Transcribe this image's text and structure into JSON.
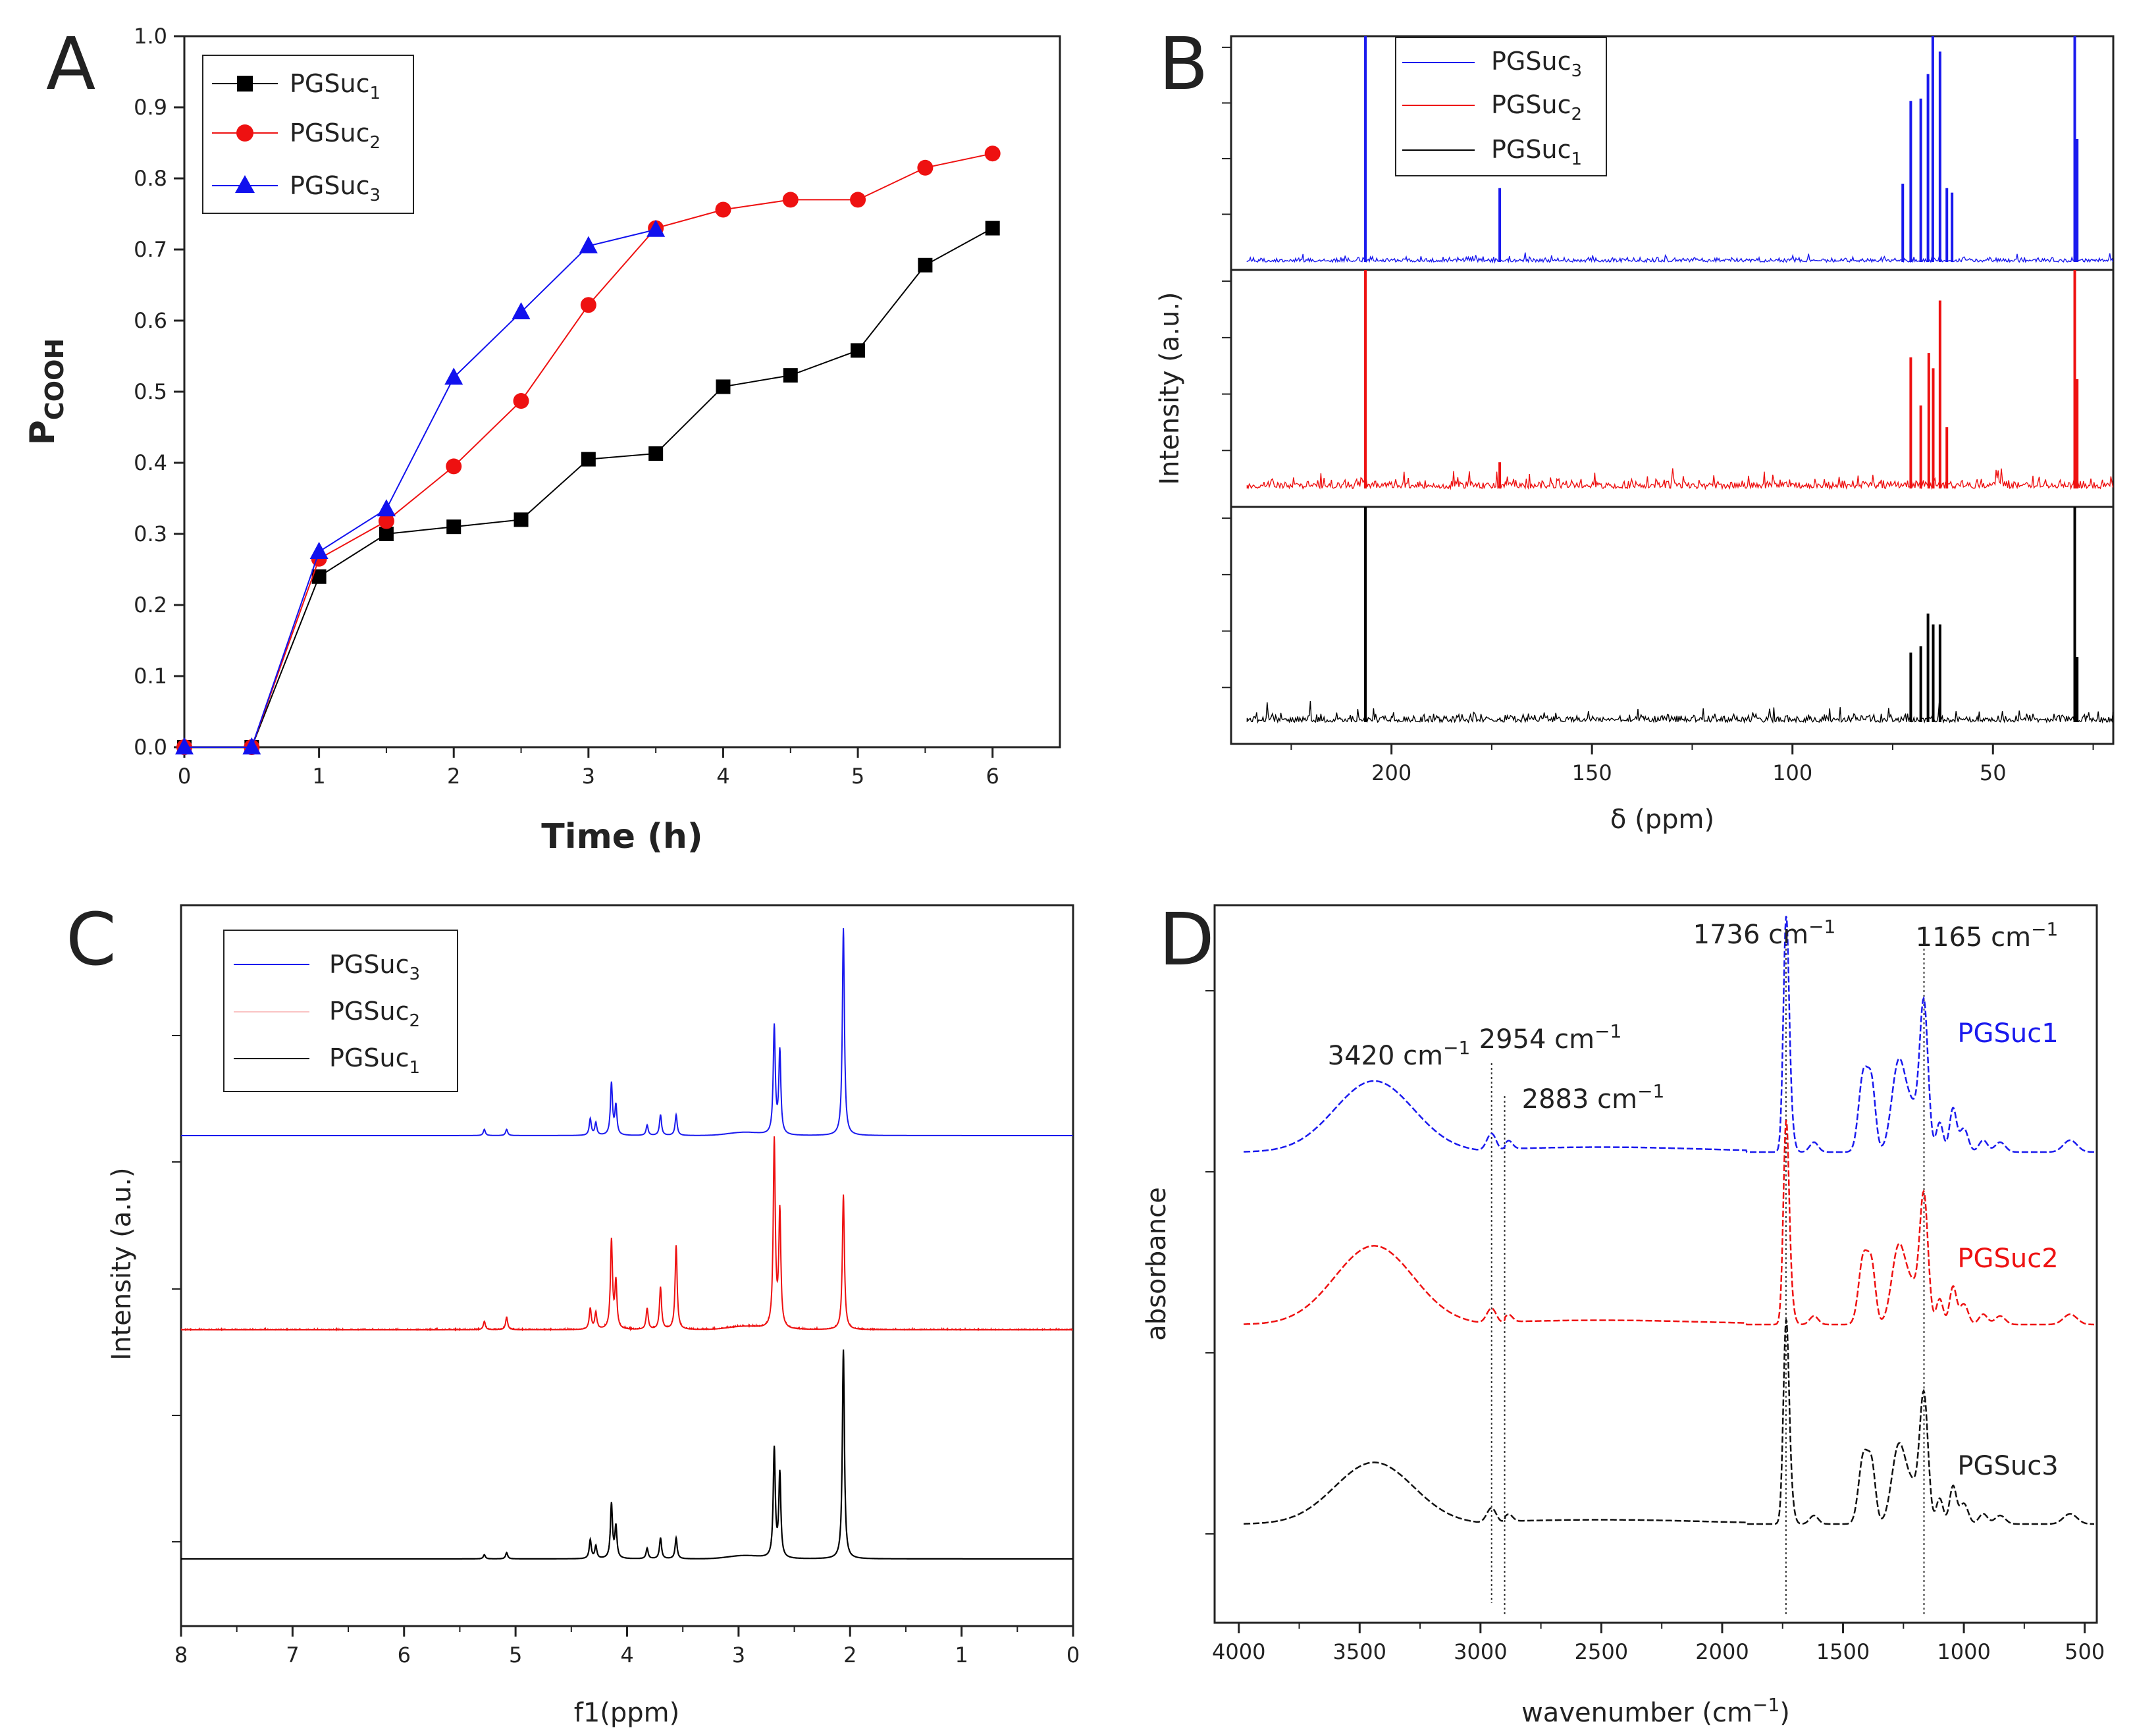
{
  "chart_data": [
    {
      "panel": "A",
      "type": "line",
      "xlabel": "Time (h)",
      "ylabel_main": "P",
      "ylabel_sub": "COOH",
      "xlim": [
        0,
        6.5
      ],
      "ylim": [
        0,
        1.0
      ],
      "xticks": [
        "0",
        "1",
        "2",
        "3",
        "4",
        "5",
        "6"
      ],
      "yticks": [
        "0.0",
        "0.1",
        "0.2",
        "0.3",
        "0.4",
        "0.5",
        "0.6",
        "0.7",
        "0.8",
        "0.9",
        "1.0"
      ],
      "legend_position": "top-left",
      "series": [
        {
          "name": "PGSuc",
          "sub": "1",
          "color": "#000000",
          "marker": "square",
          "x": [
            0,
            0.5,
            1,
            1.5,
            2,
            2.5,
            3,
            3.5,
            4,
            4.5,
            5,
            5.5,
            6
          ],
          "y": [
            0,
            0,
            0.24,
            0.3,
            0.31,
            0.32,
            0.405,
            0.413,
            0.507,
            0.523,
            0.558,
            0.678,
            0.73
          ]
        },
        {
          "name": "PGSuc",
          "sub": "2",
          "color": "#ee1111",
          "marker": "circle",
          "x": [
            0,
            0.5,
            1,
            1.5,
            2,
            2.5,
            3,
            3.5,
            4,
            4.5,
            5,
            5.5,
            6
          ],
          "y": [
            0,
            0,
            0.265,
            0.318,
            0.395,
            0.487,
            0.622,
            0.73,
            0.756,
            0.77,
            0.77,
            0.815,
            0.835
          ]
        },
        {
          "name": "PGSuc",
          "sub": "3",
          "color": "#1111ee",
          "marker": "triangle",
          "x": [
            0,
            0.5,
            1,
            1.5,
            2,
            2.5,
            3,
            3.5
          ],
          "y": [
            0,
            0,
            0.275,
            0.335,
            0.52,
            0.612,
            0.705,
            0.728
          ]
        }
      ]
    },
    {
      "panel": "B",
      "type": "line",
      "xlabel": "δ (ppm)",
      "ylabel": "Intensity (a.u.)",
      "xlim": [
        240,
        20
      ],
      "xticks": [
        "200",
        "150",
        "100",
        "50"
      ],
      "legend_position": "top-center",
      "series": [
        {
          "name": "PGSuc",
          "sub": "3",
          "color": "#1a1aee",
          "peaks": [
            [
              206.5,
              1.1
            ],
            [
              173.0,
              0.33
            ],
            [
              72.5,
              0.35
            ],
            [
              70.5,
              0.72
            ],
            [
              68.0,
              0.73
            ],
            [
              66.2,
              0.84
            ],
            [
              65.0,
              1.1
            ],
            [
              63.2,
              0.94
            ],
            [
              61.5,
              0.33
            ],
            [
              60.2,
              0.31
            ],
            [
              29.6,
              1.1
            ],
            [
              29.0,
              0.55
            ]
          ]
        },
        {
          "name": "PGSuc",
          "sub": "2",
          "color": "#ee1111",
          "peaks": [
            [
              206.5,
              1.1
            ],
            [
              173.0,
              0.12
            ],
            [
              70.5,
              0.6
            ],
            [
              68.0,
              0.38
            ],
            [
              66.0,
              0.62
            ],
            [
              64.9,
              0.55
            ],
            [
              63.2,
              0.86
            ],
            [
              61.5,
              0.28
            ],
            [
              29.6,
              1.1
            ],
            [
              29.0,
              0.5
            ]
          ]
        },
        {
          "name": "PGSuc",
          "sub": "1",
          "color": "#000000",
          "peaks": [
            [
              206.5,
              1.1
            ],
            [
              70.5,
              0.32
            ],
            [
              68.0,
              0.35
            ],
            [
              66.2,
              0.5
            ],
            [
              64.9,
              0.45
            ],
            [
              63.2,
              0.45
            ],
            [
              29.6,
              1.1
            ],
            [
              29.0,
              0.3
            ]
          ]
        }
      ]
    },
    {
      "panel": "C",
      "type": "line",
      "xlabel": "f1(ppm)",
      "ylabel": "Intensity (a.u.)",
      "xlim": [
        8,
        0
      ],
      "xticks": [
        "8",
        "7",
        "6",
        "5",
        "4",
        "3",
        "2",
        "1",
        "0"
      ],
      "legend_position": "top-left",
      "series": [
        {
          "name": "PGSuc",
          "sub": "3",
          "color": "#1a1aee",
          "peaks": [
            [
              5.28,
              0.03
            ],
            [
              5.08,
              0.03
            ],
            [
              4.33,
              0.08
            ],
            [
              4.28,
              0.06
            ],
            [
              4.14,
              0.25
            ],
            [
              4.1,
              0.14
            ],
            [
              3.82,
              0.05
            ],
            [
              3.7,
              0.1
            ],
            [
              3.56,
              0.1
            ],
            [
              2.68,
              0.52
            ],
            [
              2.63,
              0.4
            ],
            [
              2.06,
              1.0
            ]
          ]
        },
        {
          "name": "PGSuc",
          "sub": "2",
          "color": "#ee1111",
          "peaks": [
            [
              5.28,
              0.04
            ],
            [
              5.08,
              0.06
            ],
            [
              4.33,
              0.1
            ],
            [
              4.28,
              0.08
            ],
            [
              4.14,
              0.42
            ],
            [
              4.1,
              0.22
            ],
            [
              3.82,
              0.1
            ],
            [
              3.7,
              0.2
            ],
            [
              3.56,
              0.4
            ],
            [
              2.68,
              0.89
            ],
            [
              2.63,
              0.55
            ],
            [
              2.06,
              0.64
            ]
          ]
        },
        {
          "name": "PGSuc",
          "sub": "1",
          "color": "#000000",
          "peaks": [
            [
              5.28,
              0.02
            ],
            [
              5.08,
              0.03
            ],
            [
              4.33,
              0.09
            ],
            [
              4.28,
              0.06
            ],
            [
              4.14,
              0.26
            ],
            [
              4.1,
              0.15
            ],
            [
              3.82,
              0.05
            ],
            [
              3.7,
              0.1
            ],
            [
              3.56,
              0.1
            ],
            [
              2.68,
              0.52
            ],
            [
              2.63,
              0.4
            ],
            [
              2.06,
              1.0
            ]
          ]
        }
      ]
    },
    {
      "panel": "D",
      "type": "line",
      "xlabel_main": "wavenumber (cm",
      "xlabel_sup": "−1",
      "xlabel_close": ")",
      "ylabel": "absorbance",
      "xlim": [
        4100,
        450
      ],
      "xticks": [
        "4000",
        "3500",
        "3000",
        "2500",
        "2000",
        "1500",
        "1000",
        "500"
      ],
      "tick_values": [
        4000,
        3500,
        3000,
        2500,
        2000,
        1500,
        1000,
        500
      ],
      "reference_lines": [
        2954,
        2900,
        1736,
        1165
      ],
      "annotations": [
        {
          "text": "3420 cm",
          "sup": "−1"
        },
        {
          "text": "2954 cm",
          "sup": "−1"
        },
        {
          "text": "2883 cm",
          "sup": "−1"
        },
        {
          "text": "1736 cm",
          "sup": "−1"
        },
        {
          "text": "1165 cm",
          "sup": "−1"
        }
      ],
      "series": [
        {
          "name": "PGSuc1",
          "color": "#1a1aee"
        },
        {
          "name": "PGSuc2",
          "color": "#ee1111"
        },
        {
          "name": "PGSuc3",
          "color": "#111111"
        }
      ]
    }
  ]
}
